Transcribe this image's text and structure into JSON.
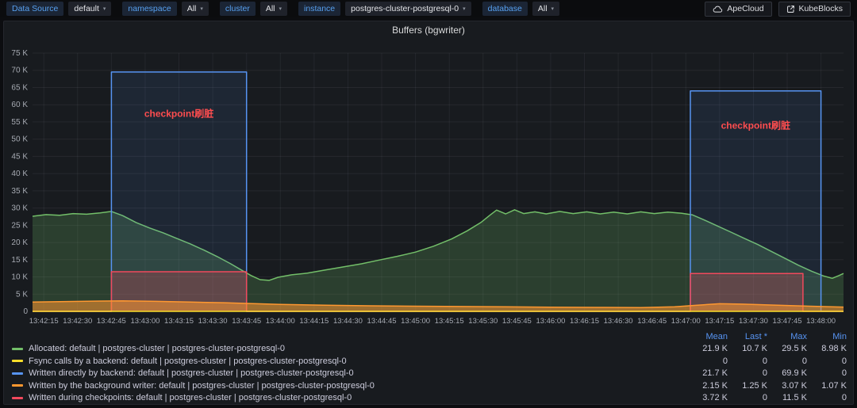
{
  "toolbar": {
    "filters": [
      {
        "label": "Data Source",
        "value": "default"
      },
      {
        "label": "namespace",
        "value": "All"
      },
      {
        "label": "cluster",
        "value": "All"
      },
      {
        "label": "instance",
        "value": "postgres-cluster-postgresql-0"
      },
      {
        "label": "database",
        "value": "All"
      }
    ],
    "links": [
      {
        "label": "ApeCloud",
        "icon": "cloud-icon"
      },
      {
        "label": "KubeBlocks",
        "icon": "external-link-icon"
      }
    ]
  },
  "panel": {
    "title": "Buffers (bgwriter)"
  },
  "legend": {
    "columns": [
      "Mean",
      "Last *",
      "Max",
      "Min"
    ],
    "rows": [
      {
        "color": "#73bf69",
        "label": "Allocated: default | postgres-cluster | postgres-cluster-postgresql-0",
        "mean": "21.9 K",
        "last": "10.7 K",
        "max": "29.5 K",
        "min": "8.98 K"
      },
      {
        "color": "#fade2a",
        "label": "Fsync calls by a backend: default | postgres-cluster | postgres-cluster-postgresql-0",
        "mean": "0",
        "last": "0",
        "max": "0",
        "min": "0"
      },
      {
        "color": "#5794f2",
        "label": "Written directly by backend: default | postgres-cluster | postgres-cluster-postgresql-0",
        "mean": "21.7 K",
        "last": "0",
        "max": "69.9 K",
        "min": "0"
      },
      {
        "color": "#ff9830",
        "label": "Written by the background writer: default | postgres-cluster | postgres-cluster-postgresql-0",
        "mean": "2.15 K",
        "last": "1.25 K",
        "max": "3.07 K",
        "min": "1.07 K"
      },
      {
        "color": "#f2495c",
        "label": "Written during checkpoints: default | postgres-cluster | postgres-cluster-postgresql-0",
        "mean": "3.72 K",
        "last": "0",
        "max": "11.5 K",
        "min": "0"
      }
    ]
  },
  "chart_data": {
    "type": "area",
    "title": "Buffers (bgwriter)",
    "unit": "values in thousands (K) of buffers",
    "x_unit": "seconds after 13:42:10",
    "x_range": [
      0,
      360
    ],
    "y_range": [
      0,
      75
    ],
    "grid": true,
    "legend_position": "bottom",
    "y_ticks": [
      {
        "v": 0,
        "label": "0"
      },
      {
        "v": 5,
        "label": "5 K"
      },
      {
        "v": 10,
        "label": "10 K"
      },
      {
        "v": 15,
        "label": "15 K"
      },
      {
        "v": 20,
        "label": "20 K"
      },
      {
        "v": 25,
        "label": "25 K"
      },
      {
        "v": 30,
        "label": "30 K"
      },
      {
        "v": 35,
        "label": "35 K"
      },
      {
        "v": 40,
        "label": "40 K"
      },
      {
        "v": 45,
        "label": "45 K"
      },
      {
        "v": 50,
        "label": "50 K"
      },
      {
        "v": 55,
        "label": "55 K"
      },
      {
        "v": 60,
        "label": "60 K"
      },
      {
        "v": 65,
        "label": "65 K"
      },
      {
        "v": 70,
        "label": "70 K"
      },
      {
        "v": 75,
        "label": "75 K"
      }
    ],
    "x_ticks": [
      {
        "t": 5,
        "label": "13:42:15"
      },
      {
        "t": 20,
        "label": "13:42:30"
      },
      {
        "t": 35,
        "label": "13:42:45"
      },
      {
        "t": 50,
        "label": "13:43:00"
      },
      {
        "t": 65,
        "label": "13:43:15"
      },
      {
        "t": 80,
        "label": "13:43:30"
      },
      {
        "t": 95,
        "label": "13:43:45"
      },
      {
        "t": 110,
        "label": "13:44:00"
      },
      {
        "t": 125,
        "label": "13:44:15"
      },
      {
        "t": 140,
        "label": "13:44:30"
      },
      {
        "t": 155,
        "label": "13:44:45"
      },
      {
        "t": 170,
        "label": "13:45:00"
      },
      {
        "t": 185,
        "label": "13:45:15"
      },
      {
        "t": 200,
        "label": "13:45:30"
      },
      {
        "t": 215,
        "label": "13:45:45"
      },
      {
        "t": 230,
        "label": "13:46:00"
      },
      {
        "t": 245,
        "label": "13:46:15"
      },
      {
        "t": 260,
        "label": "13:46:30"
      },
      {
        "t": 275,
        "label": "13:46:45"
      },
      {
        "t": 290,
        "label": "13:47:00"
      },
      {
        "t": 305,
        "label": "13:47:15"
      },
      {
        "t": 320,
        "label": "13:47:30"
      },
      {
        "t": 335,
        "label": "13:47:45"
      },
      {
        "t": 350,
        "label": "13:48:00"
      }
    ],
    "series": [
      {
        "name": "Allocated",
        "color": "#73bf69",
        "fill_opacity": 0.22,
        "points": [
          [
            0,
            27.6
          ],
          [
            6,
            28.1
          ],
          [
            12,
            27.9
          ],
          [
            18,
            28.4
          ],
          [
            24,
            28.2
          ],
          [
            30,
            28.6
          ],
          [
            35,
            29.0
          ],
          [
            40,
            27.8
          ],
          [
            46,
            25.8
          ],
          [
            52,
            24.2
          ],
          [
            58,
            22.8
          ],
          [
            64,
            21.2
          ],
          [
            70,
            19.6
          ],
          [
            76,
            17.8
          ],
          [
            82,
            15.9
          ],
          [
            88,
            13.8
          ],
          [
            93,
            11.9
          ],
          [
            97,
            10.4
          ],
          [
            101,
            9.2
          ],
          [
            105,
            9.0
          ],
          [
            109,
            9.9
          ],
          [
            115,
            10.6
          ],
          [
            122,
            11.1
          ],
          [
            130,
            12.0
          ],
          [
            138,
            12.9
          ],
          [
            146,
            13.8
          ],
          [
            154,
            14.9
          ],
          [
            162,
            16.0
          ],
          [
            170,
            17.2
          ],
          [
            178,
            18.9
          ],
          [
            186,
            21.0
          ],
          [
            193,
            23.4
          ],
          [
            199,
            25.8
          ],
          [
            203,
            27.9
          ],
          [
            206,
            29.4
          ],
          [
            210,
            28.3
          ],
          [
            214,
            29.5
          ],
          [
            218,
            28.4
          ],
          [
            223,
            28.9
          ],
          [
            228,
            28.3
          ],
          [
            234,
            29.0
          ],
          [
            240,
            28.4
          ],
          [
            246,
            28.9
          ],
          [
            252,
            28.3
          ],
          [
            258,
            28.8
          ],
          [
            264,
            28.3
          ],
          [
            270,
            28.9
          ],
          [
            276,
            28.4
          ],
          [
            282,
            28.8
          ],
          [
            288,
            28.5
          ],
          [
            293,
            28.0
          ],
          [
            298,
            26.6
          ],
          [
            304,
            24.8
          ],
          [
            310,
            23.0
          ],
          [
            316,
            21.2
          ],
          [
            322,
            19.4
          ],
          [
            328,
            17.4
          ],
          [
            334,
            15.4
          ],
          [
            340,
            13.4
          ],
          [
            346,
            11.6
          ],
          [
            351,
            10.3
          ],
          [
            355,
            9.6
          ],
          [
            358,
            10.4
          ],
          [
            360,
            11.0
          ]
        ]
      },
      {
        "name": "Written directly by backend",
        "color": "#5794f2",
        "fill_opacity": 0.1,
        "points": [
          [
            0,
            0
          ],
          [
            35,
            0
          ],
          [
            35,
            69.5
          ],
          [
            95,
            69.5
          ],
          [
            95,
            0
          ],
          [
            292,
            0
          ],
          [
            292,
            64
          ],
          [
            350,
            64
          ],
          [
            350,
            0
          ],
          [
            360,
            0
          ]
        ]
      },
      {
        "name": "Written during checkpoints",
        "color": "#f2495c",
        "fill_opacity": 0.25,
        "points": [
          [
            0,
            0
          ],
          [
            35,
            0
          ],
          [
            35,
            11.5
          ],
          [
            95,
            11.5
          ],
          [
            95,
            0
          ],
          [
            292,
            0
          ],
          [
            292,
            11
          ],
          [
            342,
            11
          ],
          [
            342,
            0
          ],
          [
            360,
            0
          ]
        ]
      },
      {
        "name": "Written by the background writer",
        "color": "#ff9830",
        "fill_opacity": 0.55,
        "points": [
          [
            0,
            2.7
          ],
          [
            15,
            2.85
          ],
          [
            30,
            3.0
          ],
          [
            40,
            3.07
          ],
          [
            55,
            2.9
          ],
          [
            70,
            2.7
          ],
          [
            85,
            2.5
          ],
          [
            95,
            2.3
          ],
          [
            110,
            2.0
          ],
          [
            130,
            1.8
          ],
          [
            150,
            1.6
          ],
          [
            170,
            1.5
          ],
          [
            190,
            1.4
          ],
          [
            210,
            1.3
          ],
          [
            230,
            1.2
          ],
          [
            250,
            1.15
          ],
          [
            270,
            1.1
          ],
          [
            285,
            1.3
          ],
          [
            295,
            1.8
          ],
          [
            305,
            2.2
          ],
          [
            315,
            2.1
          ],
          [
            325,
            1.9
          ],
          [
            335,
            1.7
          ],
          [
            345,
            1.5
          ],
          [
            355,
            1.3
          ],
          [
            360,
            1.25
          ]
        ]
      },
      {
        "name": "Fsync calls by a backend",
        "color": "#fade2a",
        "fill_opacity": 0,
        "points": [
          [
            0,
            0
          ],
          [
            360,
            0
          ]
        ]
      }
    ],
    "annotations": [
      {
        "t": 65,
        "y": 56.5,
        "text": "checkpoint刷脏"
      },
      {
        "t": 321,
        "y": 53,
        "text": "checkpoint刷脏"
      }
    ],
    "annotation_color": "#ff4d4f"
  }
}
